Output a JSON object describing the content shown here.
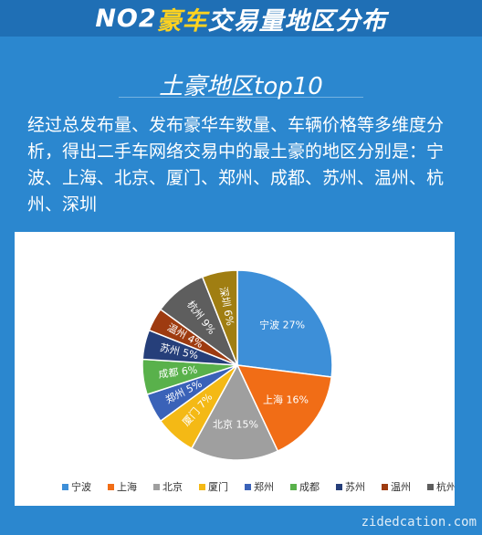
{
  "header": {
    "part_a": "NO2 ",
    "part_b": "豪车",
    "part_c": "交易量地区分布"
  },
  "section_title": "土豪地区top10",
  "description": "经过总发布量、发布豪华车数量、车辆价格等多维度分析，得出二手车网络交易中的最土豪的地区分别是：宁波、上海、北京、厦门、郑州、成都、苏州、温州、杭州、深圳",
  "watermark": "zidedcation.com",
  "chart_data": {
    "type": "pie",
    "slices": [
      {
        "name": "宁波",
        "value": 27,
        "label": "宁波 27%",
        "color": "#3d8fd8",
        "text_color": "#ffffff"
      },
      {
        "name": "上海",
        "value": 16,
        "label": "上海 16%",
        "color": "#f16d16",
        "text_color": "#ffffff"
      },
      {
        "name": "北京",
        "value": 15,
        "label": "北京 15%",
        "color": "#9f9f9f",
        "text_color": "#ffffff"
      },
      {
        "name": "厦门",
        "value": 7,
        "label": "厦门 7%",
        "color": "#f4b915",
        "text_color": "#ffffff"
      },
      {
        "name": "郑州",
        "value": 5,
        "label": "郑州 5%",
        "color": "#3a62b8",
        "text_color": "#ffffff"
      },
      {
        "name": "成都",
        "value": 6,
        "label": "成都 6%",
        "color": "#59b14b",
        "text_color": "#ffffff"
      },
      {
        "name": "苏州",
        "value": 5,
        "label": "苏州 5%",
        "color": "#263f7a",
        "text_color": "#ffffff"
      },
      {
        "name": "温州",
        "value": 4,
        "label": "温州 4%",
        "color": "#9e3b10",
        "text_color": "#ffffff"
      },
      {
        "name": "杭州",
        "value": 9,
        "label": "杭州 9%",
        "color": "#5e5e5e",
        "text_color": "#ffffff"
      },
      {
        "name": "深圳",
        "value": 6,
        "label": "深圳 6%",
        "color": "#a07e12",
        "text_color": "#ffffff"
      }
    ],
    "legend_position": "bottom"
  }
}
